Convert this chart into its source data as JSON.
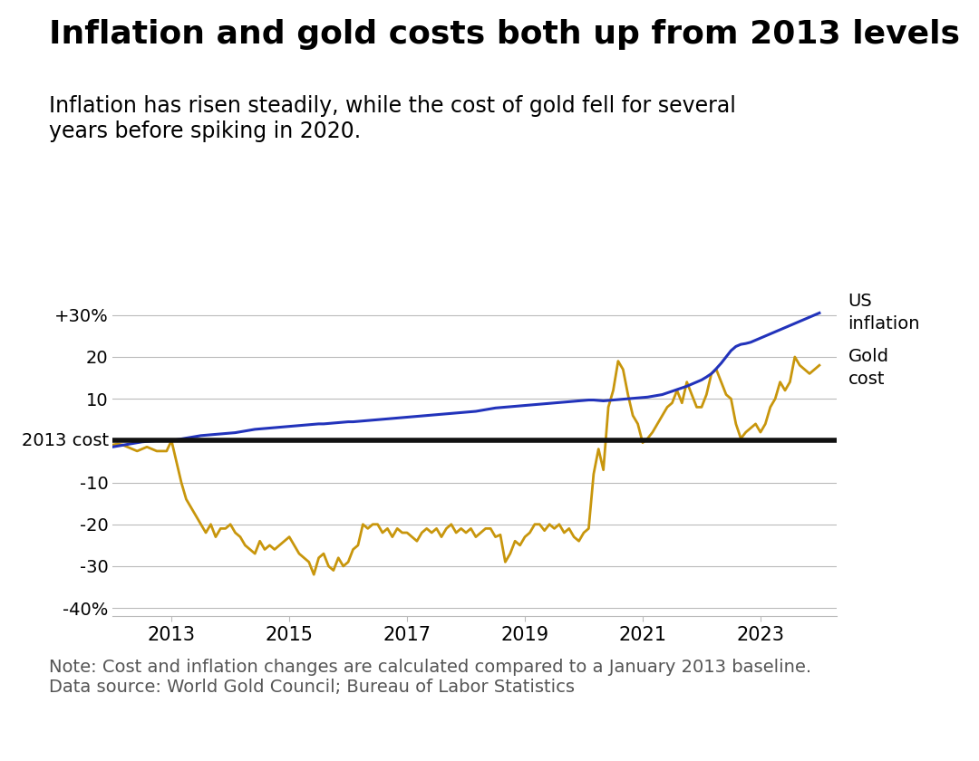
{
  "title": "Inflation and gold costs both up from 2013 levels",
  "subtitle": "Inflation has risen steadily, while the cost of gold fell for several\nyears before spiking in 2020.",
  "note": "Note: Cost and inflation changes are calculated compared to a January 2013 baseline.\nData source: World Gold Council; Bureau of Labor Statistics",
  "title_fontsize": 26,
  "subtitle_fontsize": 17,
  "note_fontsize": 14,
  "inflation_color": "#2233bb",
  "gold_color": "#C8960C",
  "baseline_color": "#111111",
  "grid_color": "#bbbbbb",
  "bg_color": "#ffffff",
  "label_us_inflation": "US\ninflation",
  "label_gold_cost": "Gold\ncost",
  "label_2013_cost": "2013 cost",
  "x_tick_years": [
    2013,
    2015,
    2017,
    2019,
    2021,
    2023
  ],
  "ylim": [
    -42,
    38
  ],
  "yticks": [
    -40,
    -30,
    -20,
    -10,
    0,
    10,
    20,
    30
  ],
  "inflation_dates": [
    2012.0,
    2012.083,
    2012.167,
    2012.25,
    2012.333,
    2012.417,
    2012.5,
    2012.583,
    2012.667,
    2012.75,
    2012.833,
    2012.917,
    2013.0,
    2013.083,
    2013.167,
    2013.25,
    2013.333,
    2013.417,
    2013.5,
    2013.583,
    2013.667,
    2013.75,
    2013.833,
    2013.917,
    2014.0,
    2014.083,
    2014.167,
    2014.25,
    2014.333,
    2014.417,
    2014.5,
    2014.583,
    2014.667,
    2014.75,
    2014.833,
    2014.917,
    2015.0,
    2015.083,
    2015.167,
    2015.25,
    2015.333,
    2015.417,
    2015.5,
    2015.583,
    2015.667,
    2015.75,
    2015.833,
    2015.917,
    2016.0,
    2016.083,
    2016.167,
    2016.25,
    2016.333,
    2016.417,
    2016.5,
    2016.583,
    2016.667,
    2016.75,
    2016.833,
    2016.917,
    2017.0,
    2017.083,
    2017.167,
    2017.25,
    2017.333,
    2017.417,
    2017.5,
    2017.583,
    2017.667,
    2017.75,
    2017.833,
    2017.917,
    2018.0,
    2018.083,
    2018.167,
    2018.25,
    2018.333,
    2018.417,
    2018.5,
    2018.583,
    2018.667,
    2018.75,
    2018.833,
    2018.917,
    2019.0,
    2019.083,
    2019.167,
    2019.25,
    2019.333,
    2019.417,
    2019.5,
    2019.583,
    2019.667,
    2019.75,
    2019.833,
    2019.917,
    2020.0,
    2020.083,
    2020.167,
    2020.25,
    2020.333,
    2020.417,
    2020.5,
    2020.583,
    2020.667,
    2020.75,
    2020.833,
    2020.917,
    2021.0,
    2021.083,
    2021.167,
    2021.25,
    2021.333,
    2021.417,
    2021.5,
    2021.583,
    2021.667,
    2021.75,
    2021.833,
    2021.917,
    2022.0,
    2022.083,
    2022.167,
    2022.25,
    2022.333,
    2022.417,
    2022.5,
    2022.583,
    2022.667,
    2022.75,
    2022.833,
    2022.917,
    2023.0,
    2023.083,
    2023.167,
    2023.25,
    2023.333,
    2023.417,
    2023.5,
    2023.583,
    2023.667,
    2023.75,
    2023.833,
    2023.917,
    2024.0
  ],
  "inflation_values": [
    -1.5,
    -1.3,
    -1.1,
    -0.9,
    -0.7,
    -0.5,
    -0.3,
    -0.2,
    -0.1,
    0.0,
    0.1,
    0.1,
    0.0,
    0.2,
    0.4,
    0.6,
    0.8,
    1.0,
    1.2,
    1.3,
    1.4,
    1.5,
    1.6,
    1.7,
    1.8,
    1.9,
    2.1,
    2.3,
    2.5,
    2.7,
    2.8,
    2.9,
    3.0,
    3.1,
    3.2,
    3.3,
    3.4,
    3.5,
    3.6,
    3.7,
    3.8,
    3.9,
    4.0,
    4.0,
    4.1,
    4.2,
    4.3,
    4.4,
    4.5,
    4.5,
    4.6,
    4.7,
    4.8,
    4.9,
    5.0,
    5.1,
    5.2,
    5.3,
    5.4,
    5.5,
    5.6,
    5.7,
    5.8,
    5.9,
    6.0,
    6.1,
    6.2,
    6.3,
    6.4,
    6.5,
    6.6,
    6.7,
    6.8,
    6.9,
    7.0,
    7.2,
    7.4,
    7.6,
    7.8,
    7.9,
    8.0,
    8.1,
    8.2,
    8.3,
    8.4,
    8.5,
    8.6,
    8.7,
    8.8,
    8.9,
    9.0,
    9.1,
    9.2,
    9.3,
    9.4,
    9.5,
    9.6,
    9.7,
    9.7,
    9.6,
    9.5,
    9.6,
    9.7,
    9.8,
    9.9,
    10.0,
    10.1,
    10.2,
    10.3,
    10.4,
    10.6,
    10.8,
    11.0,
    11.4,
    11.8,
    12.2,
    12.6,
    13.0,
    13.5,
    14.0,
    14.5,
    15.2,
    16.0,
    17.2,
    18.5,
    20.0,
    21.5,
    22.5,
    23.0,
    23.2,
    23.5,
    24.0,
    24.5,
    25.0,
    25.5,
    26.0,
    26.5,
    27.0,
    27.5,
    28.0,
    28.5,
    29.0,
    29.5,
    30.0,
    30.5
  ],
  "gold_dates": [
    2012.0,
    2012.083,
    2012.167,
    2012.25,
    2012.333,
    2012.417,
    2012.5,
    2012.583,
    2012.667,
    2012.75,
    2012.833,
    2012.917,
    2013.0,
    2013.083,
    2013.167,
    2013.25,
    2013.333,
    2013.417,
    2013.5,
    2013.583,
    2013.667,
    2013.75,
    2013.833,
    2013.917,
    2014.0,
    2014.083,
    2014.167,
    2014.25,
    2014.333,
    2014.417,
    2014.5,
    2014.583,
    2014.667,
    2014.75,
    2014.833,
    2014.917,
    2015.0,
    2015.083,
    2015.167,
    2015.25,
    2015.333,
    2015.417,
    2015.5,
    2015.583,
    2015.667,
    2015.75,
    2015.833,
    2015.917,
    2016.0,
    2016.083,
    2016.167,
    2016.25,
    2016.333,
    2016.417,
    2016.5,
    2016.583,
    2016.667,
    2016.75,
    2016.833,
    2016.917,
    2017.0,
    2017.083,
    2017.167,
    2017.25,
    2017.333,
    2017.417,
    2017.5,
    2017.583,
    2017.667,
    2017.75,
    2017.833,
    2017.917,
    2018.0,
    2018.083,
    2018.167,
    2018.25,
    2018.333,
    2018.417,
    2018.5,
    2018.583,
    2018.667,
    2018.75,
    2018.833,
    2018.917,
    2019.0,
    2019.083,
    2019.167,
    2019.25,
    2019.333,
    2019.417,
    2019.5,
    2019.583,
    2019.667,
    2019.75,
    2019.833,
    2019.917,
    2020.0,
    2020.083,
    2020.167,
    2020.25,
    2020.333,
    2020.417,
    2020.5,
    2020.583,
    2020.667,
    2020.75,
    2020.833,
    2020.917,
    2021.0,
    2021.083,
    2021.167,
    2021.25,
    2021.333,
    2021.417,
    2021.5,
    2021.583,
    2021.667,
    2021.75,
    2021.833,
    2021.917,
    2022.0,
    2022.083,
    2022.167,
    2022.25,
    2022.333,
    2022.417,
    2022.5,
    2022.583,
    2022.667,
    2022.75,
    2022.833,
    2022.917,
    2023.0,
    2023.083,
    2023.167,
    2023.25,
    2023.333,
    2023.417,
    2023.5,
    2023.583,
    2023.667,
    2023.75,
    2023.833,
    2023.917,
    2024.0
  ],
  "gold_values": [
    -1.0,
    -0.8,
    -1.0,
    -1.5,
    -2.0,
    -2.5,
    -2.0,
    -1.5,
    -2.0,
    -2.5,
    -2.5,
    -2.5,
    0.0,
    -5.0,
    -10.0,
    -14.0,
    -16.0,
    -18.0,
    -20.0,
    -22.0,
    -20.0,
    -23.0,
    -21.0,
    -21.0,
    -20.0,
    -22.0,
    -23.0,
    -25.0,
    -26.0,
    -27.0,
    -24.0,
    -26.0,
    -25.0,
    -26.0,
    -25.0,
    -24.0,
    -23.0,
    -25.0,
    -27.0,
    -28.0,
    -29.0,
    -32.0,
    -28.0,
    -27.0,
    -30.0,
    -31.0,
    -28.0,
    -30.0,
    -29.0,
    -26.0,
    -25.0,
    -20.0,
    -21.0,
    -20.0,
    -20.0,
    -22.0,
    -21.0,
    -23.0,
    -21.0,
    -22.0,
    -22.0,
    -23.0,
    -24.0,
    -22.0,
    -21.0,
    -22.0,
    -21.0,
    -23.0,
    -21.0,
    -20.0,
    -22.0,
    -21.0,
    -22.0,
    -21.0,
    -23.0,
    -22.0,
    -21.0,
    -21.0,
    -23.0,
    -22.5,
    -29.0,
    -27.0,
    -24.0,
    -25.0,
    -23.0,
    -22.0,
    -20.0,
    -20.0,
    -21.5,
    -20.0,
    -21.0,
    -20.0,
    -22.0,
    -21.0,
    -23.0,
    -24.0,
    -22.0,
    -21.0,
    -8.0,
    -2.0,
    -7.0,
    8.0,
    12.0,
    19.0,
    17.0,
    11.0,
    6.0,
    4.0,
    -0.5,
    0.5,
    2.0,
    4.0,
    6.0,
    8.0,
    9.0,
    12.0,
    9.0,
    14.0,
    11.0,
    8.0,
    8.0,
    11.0,
    16.0,
    17.0,
    14.0,
    11.0,
    10.0,
    4.0,
    0.5,
    2.0,
    3.0,
    4.0,
    2.0,
    4.0,
    8.0,
    10.0,
    14.0,
    12.0,
    14.0,
    20.0,
    18.0,
    17.0,
    16.0,
    17.0,
    18.0
  ]
}
